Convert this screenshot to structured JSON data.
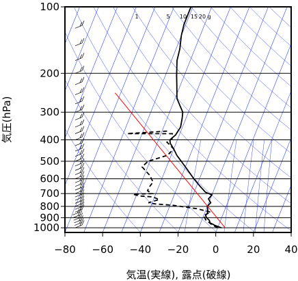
{
  "chart_data": {
    "type": "line",
    "chart_kind": "skew-T log-p aerological diagram",
    "xlabel": "気温(実線), 露点(破線)",
    "ylabel": "気圧(hPa)",
    "x_ticks": [
      -80,
      -60,
      -40,
      -20,
      0,
      20,
      40
    ],
    "y_ticks": [
      100,
      200,
      300,
      400,
      500,
      600,
      700,
      800,
      900,
      1000
    ],
    "xlim": [
      -80,
      40
    ],
    "ylim": [
      1050,
      100
    ],
    "y_scale": "log",
    "grid": true,
    "mixing_ratio_labels": [
      "1",
      "5",
      "10",
      "15",
      "20",
      "g"
    ],
    "series": [
      {
        "style": "solid",
        "color": "#000000",
        "points": [
          [
            2,
            1000
          ],
          [
            -2,
            975
          ],
          [
            -5,
            950
          ],
          [
            -6,
            925
          ],
          [
            -8,
            900
          ],
          [
            -9,
            880
          ],
          [
            -8.5,
            860
          ],
          [
            -9,
            830
          ],
          [
            -10,
            800
          ],
          [
            -9,
            770
          ],
          [
            -11,
            740
          ],
          [
            -10,
            710
          ],
          [
            -14,
            690
          ],
          [
            -18,
            650
          ],
          [
            -23,
            600
          ],
          [
            -30,
            530
          ],
          [
            -37,
            470
          ],
          [
            -40,
            440
          ],
          [
            -43,
            415
          ],
          [
            -44,
            400
          ],
          [
            -42,
            380
          ],
          [
            -41,
            350
          ],
          [
            -42,
            320
          ],
          [
            -43,
            300
          ],
          [
            -49,
            260
          ],
          [
            -52,
            225
          ],
          [
            -54,
            205
          ],
          [
            -57,
            175
          ],
          [
            -58,
            155
          ],
          [
            -60,
            135
          ],
          [
            -61,
            120
          ],
          [
            -61,
            100
          ]
        ]
      },
      {
        "style": "dashed",
        "color": "#000000",
        "points": [
          [
            0,
            1000
          ],
          [
            -4,
            965
          ],
          [
            -8,
            920
          ],
          [
            -10,
            880
          ],
          [
            -7,
            850
          ],
          [
            -15,
            820
          ],
          [
            -29,
            790
          ],
          [
            -38,
            780
          ],
          [
            -42,
            770
          ],
          [
            -37,
            745
          ],
          [
            -41,
            725
          ],
          [
            -48,
            718
          ],
          [
            -52,
            705
          ],
          [
            -42,
            700
          ],
          [
            -45,
            680
          ],
          [
            -45,
            660
          ],
          [
            -44,
            620
          ],
          [
            -47,
            580
          ],
          [
            -53,
            530
          ],
          [
            -51,
            500
          ],
          [
            -42,
            470
          ],
          [
            -40,
            440
          ],
          [
            -45,
            410
          ],
          [
            -43,
            395
          ],
          [
            -44,
            375
          ],
          [
            -68,
            375
          ],
          [
            -47,
            365
          ]
        ]
      },
      {
        "style": "solid",
        "color": "#ff0000",
        "points": [
          [
            4,
            1000
          ],
          [
            -83,
            245
          ]
        ]
      }
    ]
  }
}
